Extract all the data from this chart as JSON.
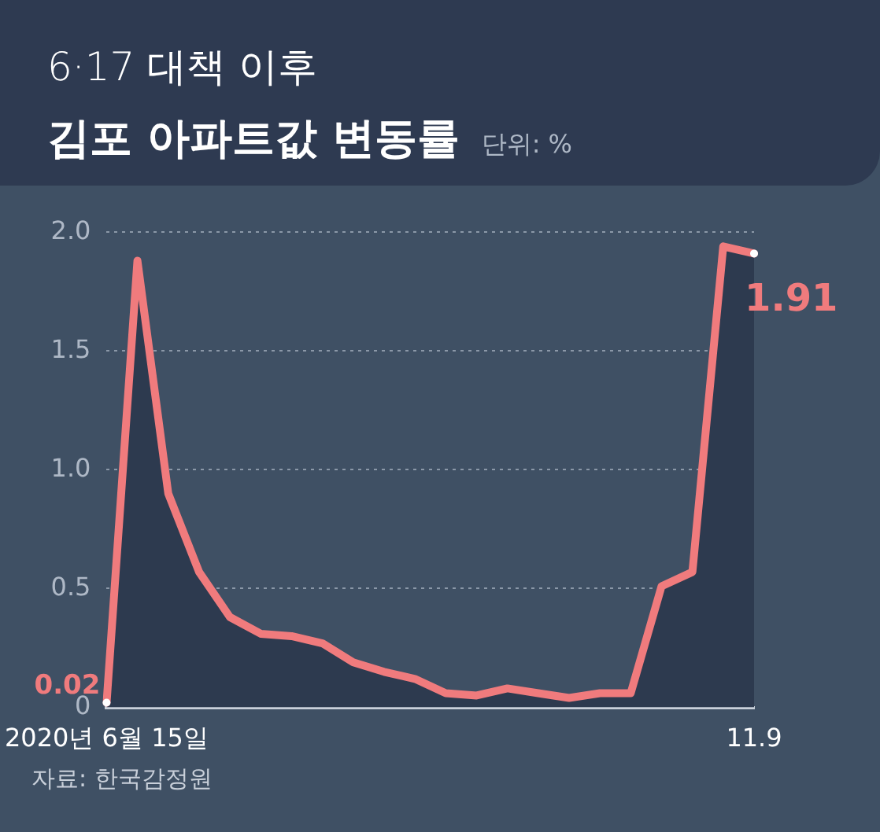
{
  "chart_data": {
    "type": "area",
    "subtitle": "6·17 대책 이후",
    "title": "김포 아파트값 변동률",
    "annotations": [
      "단위: %",
      "자료: 한국감정원"
    ],
    "categories": [
      "2020년 6월 15일",
      null,
      null,
      null,
      null,
      null,
      null,
      null,
      null,
      null,
      null,
      null,
      null,
      null,
      null,
      null,
      null,
      null,
      null,
      null,
      null,
      "11.9"
    ],
    "series": [
      {
        "color": "#f07b7d",
        "values": [
          0.02,
          1.88,
          0.9,
          0.57,
          0.38,
          0.31,
          0.3,
          0.27,
          0.19,
          0.15,
          0.12,
          0.06,
          0.05,
          0.08,
          0.06,
          0.04,
          0.06,
          0.06,
          0.51,
          0.57,
          1.94,
          1.91
        ],
        "value_labels": [
          "0.02",
          null,
          null,
          null,
          null,
          null,
          null,
          null,
          null,
          null,
          null,
          null,
          null,
          null,
          null,
          null,
          null,
          null,
          null,
          null,
          null,
          "1.91"
        ]
      }
    ],
    "ylim": [
      0,
      2.0
    ],
    "yticks": [
      0,
      0.5,
      {
        "value": 1.0,
        "label": "1.0"
      },
      1.5,
      {
        "value": 2.0,
        "label": "2.0"
      }
    ],
    "grid": "y"
  }
}
